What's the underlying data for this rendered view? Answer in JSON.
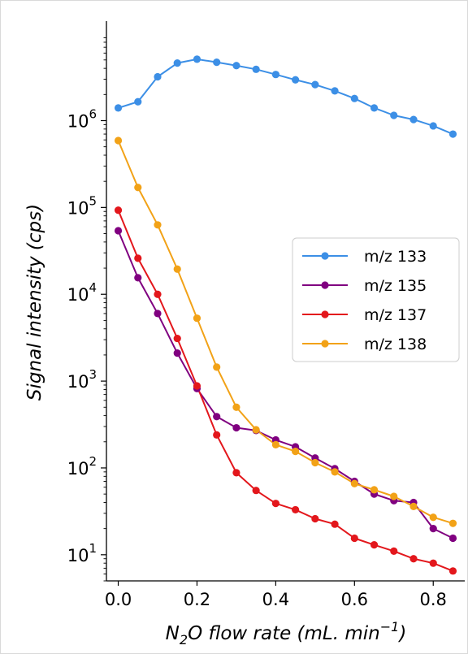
{
  "chart_data": {
    "type": "line",
    "xlabel": {
      "prefix": "N",
      "sub": "2",
      "mid": "O flow rate (mL. min",
      "sup": "−1",
      "suffix": ")"
    },
    "ylabel": "Signal intensity (cps)",
    "yscale": "log",
    "xlim": [
      -0.03,
      0.88
    ],
    "ylim": [
      5,
      14000000
    ],
    "x_ticks": [
      {
        "value": 0.0,
        "label": "0.0"
      },
      {
        "value": 0.2,
        "label": "0.2"
      },
      {
        "value": 0.4,
        "label": "0.4"
      },
      {
        "value": 0.6,
        "label": "0.6"
      },
      {
        "value": 0.8,
        "label": "0.8"
      }
    ],
    "y_ticks": [
      {
        "value": 10,
        "base": "10",
        "exp": "1"
      },
      {
        "value": 100,
        "base": "10",
        "exp": "2"
      },
      {
        "value": 1000,
        "base": "10",
        "exp": "3"
      },
      {
        "value": 10000,
        "base": "10",
        "exp": "4"
      },
      {
        "value": 100000,
        "base": "10",
        "exp": "5"
      },
      {
        "value": 1000000,
        "base": "10",
        "exp": "6"
      }
    ],
    "grid": false,
    "legend_position": "center-right",
    "x": [
      0.0,
      0.05,
      0.1,
      0.15,
      0.2,
      0.25,
      0.3,
      0.35,
      0.4,
      0.45,
      0.5,
      0.55,
      0.6,
      0.65,
      0.7,
      0.75,
      0.8,
      0.85
    ],
    "series": [
      {
        "name": "m/z 133",
        "color": "#3c8fe6",
        "values": [
          1400000,
          1650000,
          3200000,
          4600000,
          5100000,
          4700000,
          4300000,
          3900000,
          3400000,
          2950000,
          2600000,
          2200000,
          1800000,
          1400000,
          1150000,
          1030000,
          870000,
          700000
        ]
      },
      {
        "name": "m/z 135",
        "color": "#800080",
        "values": [
          54000,
          15500,
          6000,
          2100,
          820,
          390,
          290,
          270,
          210,
          175,
          130,
          98,
          70,
          50,
          42,
          40,
          20,
          15.5
        ]
      },
      {
        "name": "m/z 137",
        "color": "#e3171c",
        "values": [
          93000,
          26000,
          10000,
          3100,
          880,
          240,
          88,
          55,
          39,
          33,
          26,
          22.5,
          15.5,
          13,
          11,
          9,
          8,
          6.5
        ]
      },
      {
        "name": "m/z 138",
        "color": "#f2a217",
        "values": [
          590000,
          170000,
          63000,
          19500,
          5300,
          1450,
          500,
          275,
          185,
          155,
          115,
          90,
          66,
          56,
          47,
          36,
          27,
          23
        ]
      }
    ]
  }
}
